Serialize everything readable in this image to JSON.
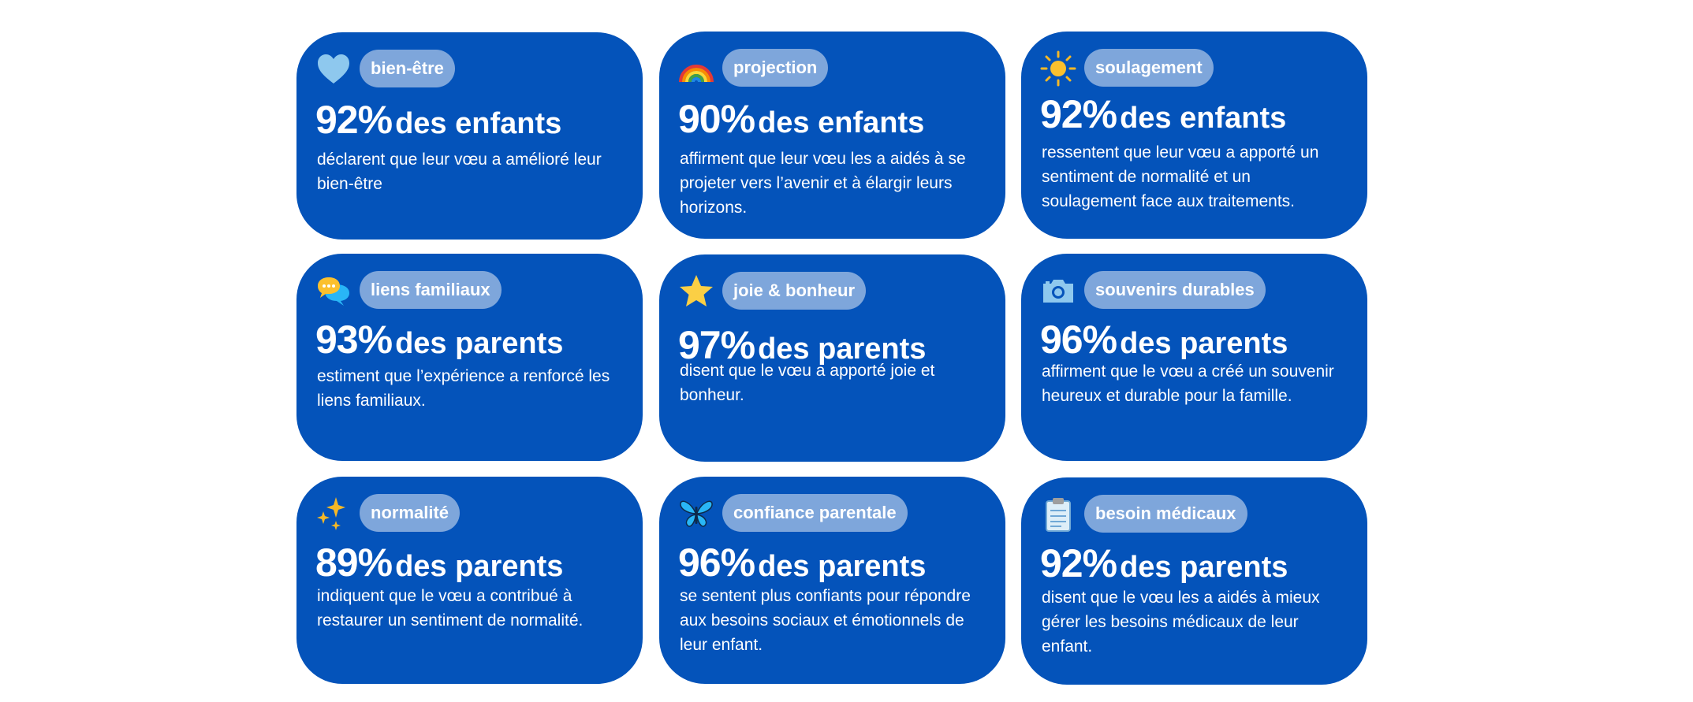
{
  "cards": [
    {
      "tag": "bien-être",
      "percent": "92%",
      "who": "des enfants",
      "desc": "déclarent que leur vœu a amélioré leur bien-être",
      "icon": "heart-icon"
    },
    {
      "tag": "projection",
      "percent": "90%",
      "who": "des enfants",
      "desc": "affirment que leur vœu les a aidés à se projeter vers l’avenir et à élargir leurs horizons.",
      "icon": "rainbow-icon"
    },
    {
      "tag": "soulagement",
      "percent": "92%",
      "who": "des enfants",
      "desc": "ressentent que leur vœu a apporté un sentiment de normalité et un soulagement face aux traitements.",
      "icon": "sun-icon"
    },
    {
      "tag": "liens familiaux",
      "percent": "93%",
      "who": "des parents",
      "desc": "estiment que l’expérience a renforcé les liens familiaux.",
      "icon": "speech-bubbles-icon"
    },
    {
      "tag": "joie & bonheur",
      "percent": "97%",
      "who": "des parents",
      "desc": "disent que le vœu a apporté joie et bonheur.",
      "icon": "star-icon"
    },
    {
      "tag": "souvenirs durables",
      "percent": "96%",
      "who": "des parents",
      "desc": "affirment que le vœu a créé un souvenir heureux et durable pour la famille.",
      "icon": "camera-icon"
    },
    {
      "tag": "normalité",
      "percent": "89%",
      "who": "des parents",
      "desc": "indiquent que le vœu a contribué à restaurer un sentiment de normalité.",
      "icon": "sparkles-icon"
    },
    {
      "tag": "confiance parentale",
      "percent": "96%",
      "who": "des parents",
      "desc": "se sentent plus confiants pour répondre aux besoins sociaux et émotionnels de leur enfant.",
      "icon": "butterfly-icon"
    },
    {
      "tag": "besoin médicaux",
      "percent": "92%",
      "who": "des parents",
      "desc": "disent que le vœu les a aidés à mieux gérer les besoins médicaux de leur enfant.",
      "icon": "clipboard-icon"
    }
  ],
  "colors": {
    "card_bg": "#0453BA",
    "tag_bg": "#7EA6DB",
    "text": "#FFFFFF"
  }
}
